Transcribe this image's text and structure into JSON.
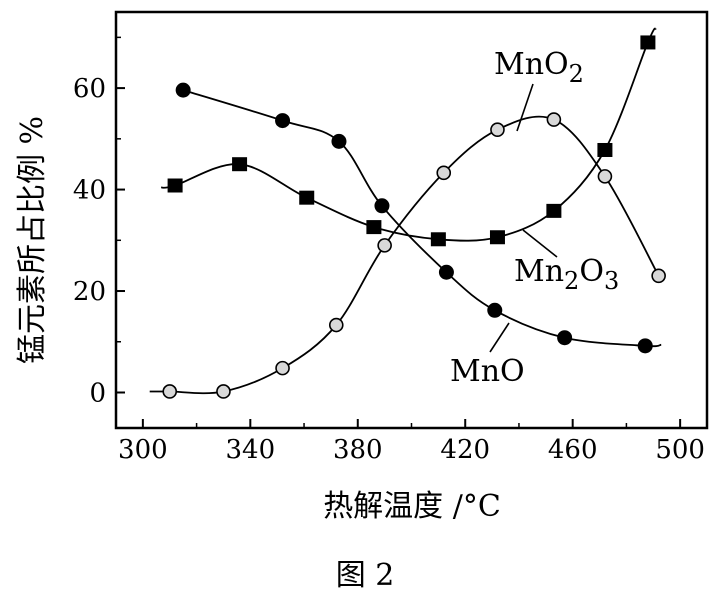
{
  "chart_data": {
    "type": "line",
    "xlabel": "热解温度 /°C",
    "ylabel": "锰元素所占比例 %",
    "caption": "图 2",
    "xlim": [
      290,
      510
    ],
    "ylim": [
      -7,
      75
    ],
    "xticks": [
      300,
      340,
      380,
      420,
      460,
      500
    ],
    "yticks": [
      0,
      20,
      40,
      60
    ],
    "grid": false,
    "series": [
      {
        "name": "MnO₂",
        "name_parts": [
          "MnO",
          "2",
          ""
        ],
        "marker": "open-circle",
        "x": [
          310,
          330,
          352,
          372,
          390,
          412,
          432,
          453,
          472,
          492
        ],
        "y": [
          0.2,
          0.2,
          4.8,
          13.3,
          29,
          43.3,
          51.8,
          53.8,
          42.6,
          23
        ]
      },
      {
        "name": "Mn₂O₃",
        "name_parts": [
          "Mn",
          "2",
          "O",
          "3"
        ],
        "marker": "filled-square",
        "x": [
          312,
          336,
          361,
          386,
          410,
          432,
          453,
          472,
          488
        ],
        "y": [
          40.8,
          45,
          38.4,
          32.6,
          30.2,
          30.6,
          35.8,
          47.8,
          69
        ]
      },
      {
        "name": "MnO",
        "name_parts": [
          "MnO"
        ],
        "marker": "filled-circle",
        "x": [
          315,
          352,
          373,
          389,
          413,
          431,
          457,
          487
        ],
        "y": [
          59.6,
          53.6,
          49.5,
          36.8,
          23.7,
          16.2,
          10.8,
          9.2
        ]
      }
    ]
  }
}
